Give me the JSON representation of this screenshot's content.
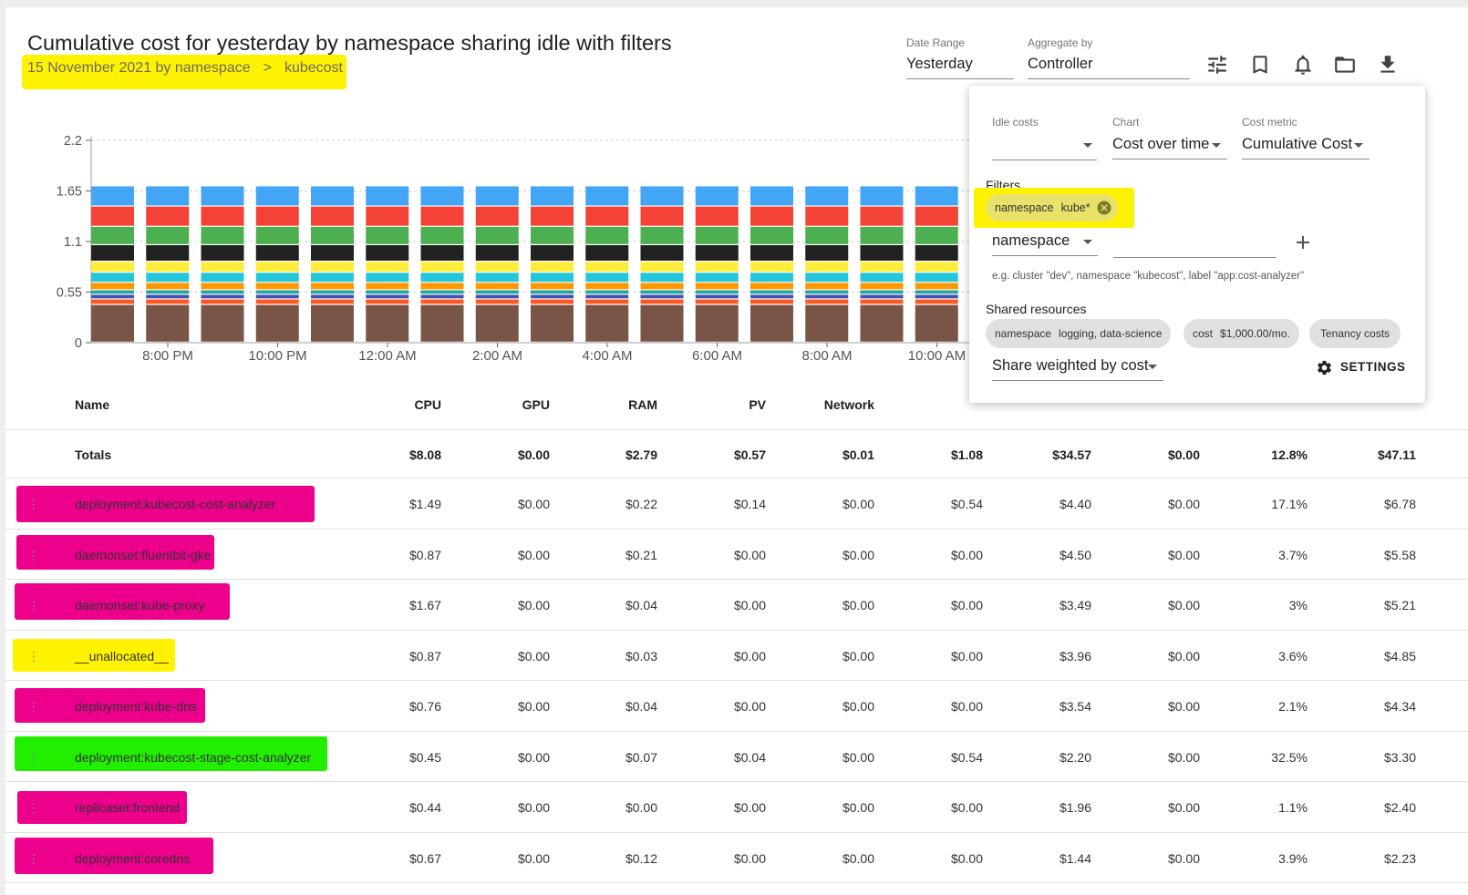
{
  "header": {
    "title": "Cumulative cost for yesterday by namespace sharing idle with filters",
    "breadcrumb_date": "15 November 2021 by namespace",
    "breadcrumb_sep": ">",
    "breadcrumb_ns": "kubecost"
  },
  "controls": {
    "date_range_label": "Date Range",
    "date_range_value": "Yesterday",
    "aggregate_label": "Aggregate by",
    "aggregate_value": "Controller"
  },
  "toolbar_icons": [
    "tune-icon",
    "bookmark-icon",
    "bell-icon",
    "folder-icon",
    "download-icon"
  ],
  "chart_data": {
    "type": "bar",
    "stacked": true,
    "y_ticks": [
      "2.2",
      "1.65",
      "1.1",
      "0.55",
      "0"
    ],
    "ylim": [
      0,
      2.2
    ],
    "x_tick_labels": [
      "8:00 PM",
      "10:00 PM",
      "12:00 AM",
      "2:00 AM",
      "4:00 AM",
      "6:00 AM",
      "8:00 AM",
      "10:00 AM"
    ],
    "bar_count": 16,
    "segment_colors": [
      "#795548",
      "#ff5722",
      "#3f51b5",
      "#26a69a",
      "#ff9800",
      "#26c6da",
      "#ffeb3b",
      "#212121",
      "#4caf50",
      "#f44336",
      "#42a5f5"
    ],
    "segment_values": [
      0.41,
      0.06,
      0.05,
      0.05,
      0.08,
      0.11,
      0.12,
      0.18,
      0.2,
      0.22,
      0.22
    ],
    "grid": true
  },
  "table": {
    "columns": [
      "Name",
      "CPU",
      "GPU",
      "RAM",
      "PV",
      "Network",
      "",
      "",
      "",
      "",
      ""
    ],
    "totals": {
      "name": "Totals",
      "values": [
        "$8.08",
        "$0.00",
        "$2.79",
        "$0.57",
        "$0.01",
        "$1.08",
        "$34.57",
        "$0.00",
        "12.8%",
        "$47.11"
      ]
    },
    "rows": [
      {
        "name": "deployment:kubecost-cost-analyzer",
        "values": [
          "$1.49",
          "$0.00",
          "$0.22",
          "$0.14",
          "$0.00",
          "$0.54",
          "$4.40",
          "$0.00",
          "17.1%",
          "$6.78"
        ]
      },
      {
        "name": "daemonset:fluentbit-gke",
        "values": [
          "$0.87",
          "$0.00",
          "$0.21",
          "$0.00",
          "$0.00",
          "$0.00",
          "$4.50",
          "$0.00",
          "3.7%",
          "$5.58"
        ]
      },
      {
        "name": "daemonset:kube-proxy",
        "values": [
          "$1.67",
          "$0.00",
          "$0.04",
          "$0.00",
          "$0.00",
          "$0.00",
          "$3.49",
          "$0.00",
          "3%",
          "$5.21"
        ]
      },
      {
        "name": "__unallocated__",
        "values": [
          "$0.87",
          "$0.00",
          "$0.03",
          "$0.00",
          "$0.00",
          "$0.00",
          "$3.96",
          "$0.00",
          "3.6%",
          "$4.85"
        ]
      },
      {
        "name": "deployment:kube-dns",
        "values": [
          "$0.76",
          "$0.00",
          "$0.04",
          "$0.00",
          "$0.00",
          "$0.00",
          "$3.54",
          "$0.00",
          "2.1%",
          "$4.34"
        ]
      },
      {
        "name": "deployment:kubecost-stage-cost-analyzer",
        "values": [
          "$0.45",
          "$0.00",
          "$0.07",
          "$0.04",
          "$0.00",
          "$0.54",
          "$2.20",
          "$0.00",
          "32.5%",
          "$3.30"
        ]
      },
      {
        "name": "replicaset:frontend",
        "values": [
          "$0.44",
          "$0.00",
          "$0.00",
          "$0.00",
          "$0.00",
          "$0.00",
          "$1.96",
          "$0.00",
          "1.1%",
          "$2.40"
        ]
      },
      {
        "name": "deployment:coredns",
        "values": [
          "$0.67",
          "$0.00",
          "$0.12",
          "$0.00",
          "$0.00",
          "$0.00",
          "$1.44",
          "$0.00",
          "3.9%",
          "$2.23"
        ]
      }
    ],
    "highlight_colors": {
      "pink": "#ec008c",
      "yellow": "#fff200",
      "green": "#22ee00"
    }
  },
  "panel": {
    "idle_label": "Idle costs",
    "idle_value": "",
    "chart_label": "Chart",
    "chart_value": "Cost over time",
    "metric_label": "Cost metric",
    "metric_value": "Cumulative Cost",
    "filters_label": "Filters",
    "filter_chip_key": "namespace",
    "filter_chip_value": "kube*",
    "filter_field_select": "namespace",
    "filter_hint": "e.g. cluster \"dev\", namespace \"kubecost\", label \"app:cost-analyzer\"",
    "shared_label": "Shared resources",
    "shared_chip1_key": "namespace",
    "shared_chip1_value": "logging, data-science",
    "shared_chip2_key": "cost",
    "shared_chip2_value": "$1,000.00/mo.",
    "shared_chip3": "Tenancy costs",
    "share_select": "Share weighted by cost",
    "settings_label": "SETTINGS"
  }
}
